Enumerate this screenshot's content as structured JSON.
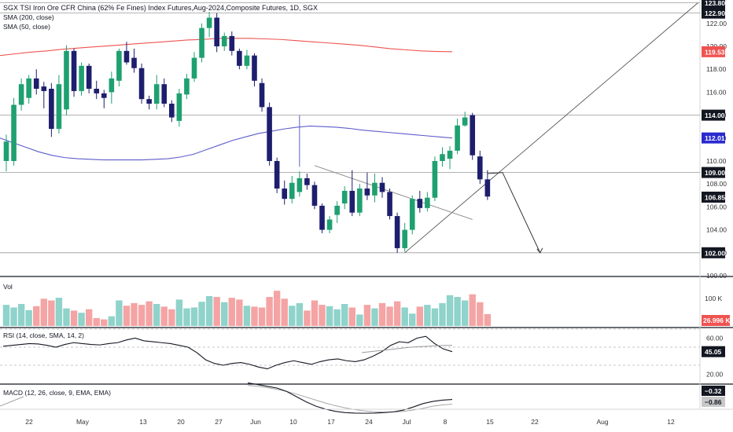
{
  "header": {
    "title": "SGX TSI Iron Ore CFR China (62% Fe Fines) Index Futures,Aug-2024,Composite Futures, 1D, SGX",
    "sma200_label": "SMA (200, close)",
    "sma50_label": "SMA (50, close)"
  },
  "colors": {
    "up": "#26a69a",
    "up_body": "#1fa070",
    "down": "#1e1e6e",
    "vol_up": "#8fd3cb",
    "vol_down": "#f4a4a4",
    "sma200": "#ef5350",
    "sma50": "#5c5ccc",
    "separator": "#131722",
    "badge_red": "#ef5350",
    "badge_blue": "#2a2ad0",
    "badge_dark": "#131722"
  },
  "price_axis": {
    "ticks": [
      "122.00",
      "120.00",
      "118.00",
      "116.00",
      "114.00",
      "112.00",
      "110.00",
      "108.00",
      "106.00",
      "104.00",
      "102.00",
      "100.00"
    ],
    "badges": [
      {
        "value": "123.80",
        "style": "dark"
      },
      {
        "value": "122.90",
        "style": "dark"
      },
      {
        "value": "119.53",
        "style": "red"
      },
      {
        "value": "114.00",
        "style": "dark"
      },
      {
        "value": "112.01",
        "style": "blue"
      },
      {
        "value": "109.00",
        "style": "dark"
      },
      {
        "value": "106.85",
        "style": "dark"
      },
      {
        "value": "102.00",
        "style": "dark"
      }
    ]
  },
  "volume_panel": {
    "label": "Vol",
    "tick": "100 K",
    "badge": "26.996 K"
  },
  "rsi_panel": {
    "label": "RSI (14, close, SMA, 14, 2)",
    "ticks": [
      "60.00",
      "20.00"
    ],
    "badge": "45.05"
  },
  "macd_panel": {
    "label": "MACD (12, 26, close, 9, EMA, EMA)",
    "badges": [
      "−0.32",
      "−0.86"
    ]
  },
  "time_axis": {
    "labels": [
      "22",
      "May",
      "13",
      "20",
      "27",
      "Jun",
      "10",
      "17",
      "24",
      "Jul",
      "8",
      "15",
      "22",
      "Aug",
      "12"
    ]
  },
  "chart_data": {
    "type": "candlestick",
    "y_range": [
      100,
      123.8
    ],
    "candles": [
      {
        "o": 110.0,
        "h": 112.3,
        "l": 109.1,
        "c": 111.7
      },
      {
        "o": 110.0,
        "h": 115.5,
        "l": 109.6,
        "c": 114.9
      },
      {
        "o": 114.9,
        "h": 117.2,
        "l": 114.4,
        "c": 116.7
      },
      {
        "o": 115.5,
        "h": 117.5,
        "l": 115.0,
        "c": 117.2
      },
      {
        "o": 117.2,
        "h": 118.0,
        "l": 115.8,
        "c": 116.3
      },
      {
        "o": 116.5,
        "h": 116.9,
        "l": 114.6,
        "c": 116.1
      },
      {
        "o": 116.3,
        "h": 116.8,
        "l": 112.1,
        "c": 112.8
      },
      {
        "o": 112.8,
        "h": 117.5,
        "l": 112.4,
        "c": 116.7
      },
      {
        "o": 114.5,
        "h": 120.1,
        "l": 114.0,
        "c": 119.6
      },
      {
        "o": 119.6,
        "h": 119.8,
        "l": 115.6,
        "c": 116.1
      },
      {
        "o": 116.1,
        "h": 118.6,
        "l": 115.7,
        "c": 118.3
      },
      {
        "o": 118.3,
        "h": 118.5,
        "l": 115.9,
        "c": 116.3
      },
      {
        "o": 116.3,
        "h": 117.0,
        "l": 115.4,
        "c": 115.9
      },
      {
        "o": 115.9,
        "h": 116.2,
        "l": 114.6,
        "c": 115.5
      },
      {
        "o": 116.0,
        "h": 117.8,
        "l": 115.0,
        "c": 117.2
      },
      {
        "o": 117.0,
        "h": 119.8,
        "l": 116.5,
        "c": 119.6
      },
      {
        "o": 119.6,
        "h": 120.4,
        "l": 118.4,
        "c": 118.6
      },
      {
        "o": 119.0,
        "h": 119.8,
        "l": 117.7,
        "c": 118.1
      },
      {
        "o": 118.1,
        "h": 118.5,
        "l": 115.0,
        "c": 115.4
      },
      {
        "o": 115.4,
        "h": 115.7,
        "l": 114.5,
        "c": 115.0
      },
      {
        "o": 115.0,
        "h": 117.5,
        "l": 114.5,
        "c": 116.7
      },
      {
        "o": 116.7,
        "h": 117.2,
        "l": 114.7,
        "c": 115.0
      },
      {
        "o": 115.0,
        "h": 115.3,
        "l": 113.4,
        "c": 113.8
      },
      {
        "o": 113.5,
        "h": 116.3,
        "l": 113.0,
        "c": 115.9
      },
      {
        "o": 115.8,
        "h": 117.6,
        "l": 115.4,
        "c": 117.2
      },
      {
        "o": 117.2,
        "h": 119.5,
        "l": 116.9,
        "c": 119.0
      },
      {
        "o": 119.0,
        "h": 122.0,
        "l": 118.6,
        "c": 121.6
      },
      {
        "o": 121.6,
        "h": 123.0,
        "l": 120.8,
        "c": 122.5
      },
      {
        "o": 122.5,
        "h": 122.9,
        "l": 119.5,
        "c": 120.0
      },
      {
        "o": 120.0,
        "h": 121.2,
        "l": 119.6,
        "c": 120.9
      },
      {
        "o": 120.9,
        "h": 121.3,
        "l": 119.2,
        "c": 119.6
      },
      {
        "o": 119.6,
        "h": 119.8,
        "l": 118.0,
        "c": 118.3
      },
      {
        "o": 118.3,
        "h": 119.7,
        "l": 118.0,
        "c": 119.2
      },
      {
        "o": 119.2,
        "h": 119.4,
        "l": 116.5,
        "c": 117.0
      },
      {
        "o": 116.8,
        "h": 117.2,
        "l": 114.3,
        "c": 114.7
      },
      {
        "o": 114.7,
        "h": 115.1,
        "l": 109.6,
        "c": 110.0
      },
      {
        "o": 110.0,
        "h": 110.3,
        "l": 107.2,
        "c": 107.6
      },
      {
        "o": 107.6,
        "h": 108.3,
        "l": 106.2,
        "c": 106.7
      },
      {
        "o": 106.7,
        "h": 108.7,
        "l": 106.3,
        "c": 108.1
      },
      {
        "o": 107.3,
        "h": 109.1,
        "l": 106.9,
        "c": 108.5
      },
      {
        "o": 108.5,
        "h": 108.9,
        "l": 107.5,
        "c": 107.9
      },
      {
        "o": 107.9,
        "h": 108.2,
        "l": 105.8,
        "c": 106.1
      },
      {
        "o": 106.1,
        "h": 106.3,
        "l": 103.7,
        "c": 104.0
      },
      {
        "o": 104.0,
        "h": 105.2,
        "l": 103.7,
        "c": 104.9
      },
      {
        "o": 105.3,
        "h": 106.5,
        "l": 104.6,
        "c": 106.1
      },
      {
        "o": 106.3,
        "h": 107.8,
        "l": 105.8,
        "c": 107.4
      },
      {
        "o": 107.4,
        "h": 109.2,
        "l": 105.2,
        "c": 105.5
      },
      {
        "o": 105.5,
        "h": 108.0,
        "l": 105.2,
        "c": 107.6
      },
      {
        "o": 107.6,
        "h": 109.0,
        "l": 106.6,
        "c": 107.0
      },
      {
        "o": 107.0,
        "h": 108.9,
        "l": 106.4,
        "c": 108.1
      },
      {
        "o": 108.1,
        "h": 108.6,
        "l": 106.8,
        "c": 107.3
      },
      {
        "o": 107.3,
        "h": 107.6,
        "l": 104.9,
        "c": 105.2
      },
      {
        "o": 105.2,
        "h": 105.5,
        "l": 102.0,
        "c": 102.4
      },
      {
        "o": 102.4,
        "h": 104.6,
        "l": 102.1,
        "c": 104.0
      },
      {
        "o": 104.0,
        "h": 107.0,
        "l": 103.6,
        "c": 106.7
      },
      {
        "o": 106.7,
        "h": 107.4,
        "l": 105.5,
        "c": 105.9
      },
      {
        "o": 105.9,
        "h": 107.3,
        "l": 105.6,
        "c": 106.8
      },
      {
        "o": 106.8,
        "h": 110.4,
        "l": 106.5,
        "c": 110.0
      },
      {
        "o": 110.0,
        "h": 111.2,
        "l": 109.5,
        "c": 110.6
      },
      {
        "o": 110.2,
        "h": 111.3,
        "l": 109.3,
        "c": 110.9
      },
      {
        "o": 110.9,
        "h": 113.7,
        "l": 110.6,
        "c": 113.1
      },
      {
        "o": 113.1,
        "h": 114.3,
        "l": 113.0,
        "c": 113.8
      },
      {
        "o": 114.0,
        "h": 114.2,
        "l": 110.1,
        "c": 110.5
      },
      {
        "o": 110.4,
        "h": 110.9,
        "l": 108.0,
        "c": 108.4
      },
      {
        "o": 108.4,
        "h": 109.2,
        "l": 106.6,
        "c": 106.9
      }
    ],
    "sma200": [
      119.2,
      119.35,
      119.5,
      119.6,
      119.75,
      119.85,
      119.95,
      120.05,
      120.15,
      120.25,
      120.35,
      120.45,
      120.55,
      120.6,
      120.7,
      120.7,
      120.7,
      120.65,
      120.6,
      120.5,
      120.4,
      120.3,
      120.2,
      120.1,
      119.95,
      119.8,
      119.7,
      119.6,
      119.55,
      119.53
    ],
    "sma50": [
      112.0,
      111.6,
      111.2,
      110.8,
      110.5,
      110.3,
      110.2,
      110.15,
      110.1,
      110.1,
      110.1,
      110.1,
      110.15,
      110.2,
      110.35,
      110.6,
      111.0,
      111.4,
      111.8,
      112.1,
      112.4,
      112.6,
      112.8,
      112.95,
      113.05,
      113.0,
      112.95,
      112.85,
      112.7,
      112.6,
      112.5,
      112.4,
      112.3,
      112.2,
      112.1,
      112.01
    ],
    "volume": [
      48,
      42,
      50,
      36,
      45,
      62,
      58,
      64,
      40,
      35,
      30,
      38,
      18,
      15,
      22,
      58,
      46,
      52,
      48,
      56,
      50,
      44,
      38,
      60,
      40,
      42,
      55,
      68,
      66,
      54,
      64,
      60,
      46,
      44,
      42,
      66,
      80,
      62,
      46,
      52,
      35,
      58,
      48,
      45,
      38,
      50,
      42,
      26,
      48,
      40,
      52,
      44,
      56,
      42,
      28,
      44,
      48,
      40,
      52,
      70,
      66,
      58,
      72,
      54,
      27
    ],
    "rsi": [
      51,
      52,
      53,
      54,
      53.5,
      52,
      50,
      53,
      55,
      54,
      53,
      52.5,
      54,
      55,
      58,
      60,
      57,
      56,
      55,
      54,
      52,
      50,
      44,
      36,
      32,
      30,
      32,
      33,
      31,
      28,
      26,
      30,
      33,
      35,
      33,
      31,
      34,
      36,
      37,
      35,
      34,
      36,
      40,
      45,
      52,
      56,
      55,
      60,
      62,
      54,
      48,
      45.05
    ],
    "rsi_ma": [
      44,
      45,
      46,
      47,
      48,
      49,
      50,
      50.5,
      51,
      51.5,
      52,
      52
    ],
    "macd": [
      1.6,
      1.4,
      1.2,
      1.0,
      0.6,
      0.0,
      -0.6,
      -1.1,
      -1.45,
      -1.7,
      -1.85,
      -1.9,
      -1.92,
      -1.9,
      -1.85,
      -1.75,
      -1.55,
      -1.2,
      -0.8,
      -0.55,
      -0.4,
      -0.32
    ],
    "macd_signal": [
      1.3,
      1.2,
      1.05,
      0.85,
      0.6,
      0.3,
      -0.05,
      -0.4,
      -0.75,
      -1.05,
      -1.3,
      -1.5,
      -1.65,
      -1.75,
      -1.8,
      -1.78,
      -1.7,
      -1.55,
      -1.35,
      -1.1,
      -0.95,
      -0.86
    ],
    "drawings": {
      "horizontal_levels": [
        123.8,
        122.9,
        114.0,
        109.0,
        102.0
      ],
      "trendline": {
        "from": [
          53,
          102.0
        ],
        "to": [
          92,
          123.8
        ]
      },
      "descending_line": {
        "from": [
          41,
          109.6
        ],
        "to": [
          62,
          104.9
        ]
      },
      "vertical_marker": {
        "candle": 39,
        "from": 109.5,
        "to": 114.0
      },
      "projection_path": [
        [
          64,
          108.9
        ],
        [
          66,
          109.0
        ],
        [
          71,
          102.0
        ]
      ]
    }
  }
}
